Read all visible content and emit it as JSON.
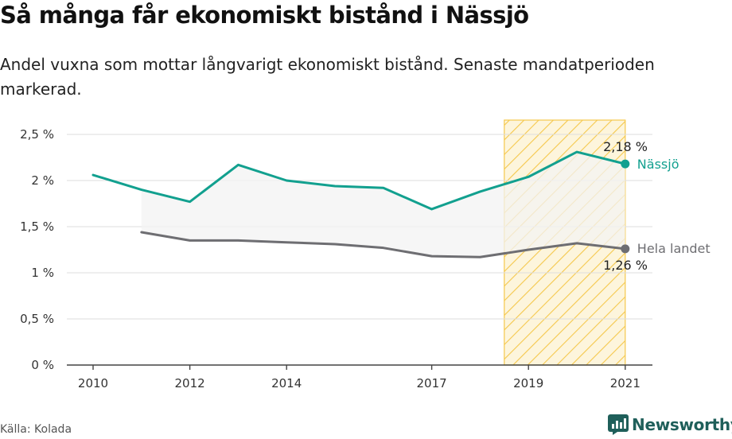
{
  "title": "Så många får ekonomiskt bistånd i Nässjö",
  "subtitle": "Andel vuxna som mottar långvarigt ekonomiskt bistånd. Senaste mandatperioden markerad.",
  "source": "Källa: Kolada",
  "brand": "Newsworthy",
  "colors": {
    "nassjo": "#12a08f",
    "riket": "#6e6e72",
    "highlight": "#f5c84c",
    "band": "#f3f3f3",
    "grid": "#dddddd",
    "brand": "#1f5f5a"
  },
  "chart_data": {
    "type": "line",
    "x": [
      2010,
      2011,
      2012,
      2013,
      2014,
      2015,
      2016,
      2017,
      2018,
      2019,
      2020,
      2021
    ],
    "xticks": [
      "2010",
      "2012",
      "2014",
      "2017",
      "2019",
      "2021"
    ],
    "yticks": [
      "0 %",
      "0,5 %",
      "1 %",
      "1,5 %",
      "2 %",
      "2,5 %"
    ],
    "ylim": [
      0,
      2.6
    ],
    "grid": true,
    "highlight_range": [
      2018.5,
      2021
    ],
    "series": [
      {
        "name": "Nässjö",
        "values": [
          2.06,
          1.9,
          1.77,
          2.17,
          2.0,
          1.94,
          1.92,
          1.69,
          1.88,
          2.04,
          2.31,
          2.18
        ],
        "end_label": "2,18 %"
      },
      {
        "name": "Hela landet",
        "values": [
          null,
          1.44,
          1.35,
          1.35,
          1.33,
          1.31,
          1.27,
          1.18,
          1.17,
          1.25,
          1.32,
          1.26
        ],
        "end_label": "1,26 %"
      }
    ]
  }
}
